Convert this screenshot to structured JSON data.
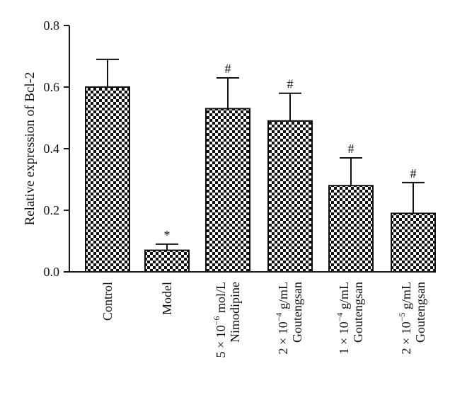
{
  "chart_data": {
    "type": "bar",
    "ylabel": "Relative expression of Bcl-2",
    "ylim": [
      0,
      0.8
    ],
    "yticks": [
      "0.0",
      "0.2",
      "0.4",
      "0.6",
      "0.8"
    ],
    "categories": [
      [
        "Control"
      ],
      [
        "Model"
      ],
      [
        "5 × 10",
        "−6",
        " mol/L",
        "Nimodipine"
      ],
      [
        "2 × 10",
        "−4",
        " g/mL",
        "Goutengsan"
      ],
      [
        "1 × 10",
        "−4",
        " g/mL",
        "Goutengsan"
      ],
      [
        "2 × 10",
        "−5",
        " g/mL",
        "Goutengsan"
      ]
    ],
    "values": [
      0.6,
      0.07,
      0.53,
      0.49,
      0.28,
      0.19
    ],
    "errors": [
      0.09,
      0.02,
      0.1,
      0.09,
      0.09,
      0.1
    ],
    "annotations": [
      "",
      "*",
      "#",
      "#",
      "#",
      "#"
    ],
    "grid": false,
    "bar_pattern": "checkerboard",
    "colors": {
      "bar_dark": "#111111",
      "bar_light": "#ffffff",
      "axis": "#1a1a1a"
    }
  }
}
